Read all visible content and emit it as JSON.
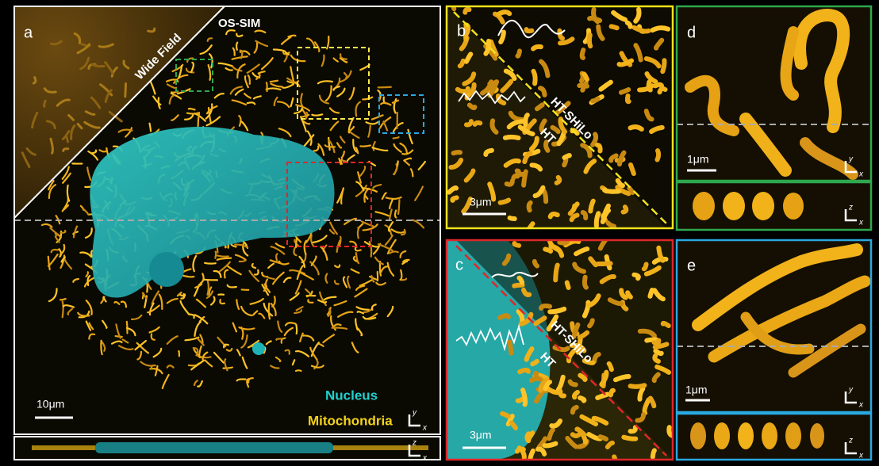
{
  "panel_a": {
    "label": "a",
    "wide_field": "Wide Field",
    "os_sim": "OS-SIM",
    "scale_bar": "10μm",
    "nucleus": "Nucleus",
    "mitochondria": "Mitochondria",
    "axes_xy": [
      "y",
      "x"
    ],
    "axes_xz": [
      "z",
      "x"
    ]
  },
  "panel_b": {
    "label": "b",
    "upper_label": "HT-SHiLo",
    "lower_label": "HT",
    "scale_bar": "3μm"
  },
  "panel_c": {
    "label": "c",
    "upper_label": "HT-SHiLo",
    "lower_label": "HT",
    "scale_bar": "3μm"
  },
  "panel_d": {
    "label": "d",
    "scale_bar": "1μm",
    "axes_xy": [
      "y",
      "x"
    ],
    "axes_xz": [
      "z",
      "x"
    ]
  },
  "panel_e": {
    "label": "e",
    "scale_bar": "1μm",
    "axes_xy": [
      "y",
      "x"
    ],
    "axes_xz": [
      "z",
      "x"
    ]
  }
}
